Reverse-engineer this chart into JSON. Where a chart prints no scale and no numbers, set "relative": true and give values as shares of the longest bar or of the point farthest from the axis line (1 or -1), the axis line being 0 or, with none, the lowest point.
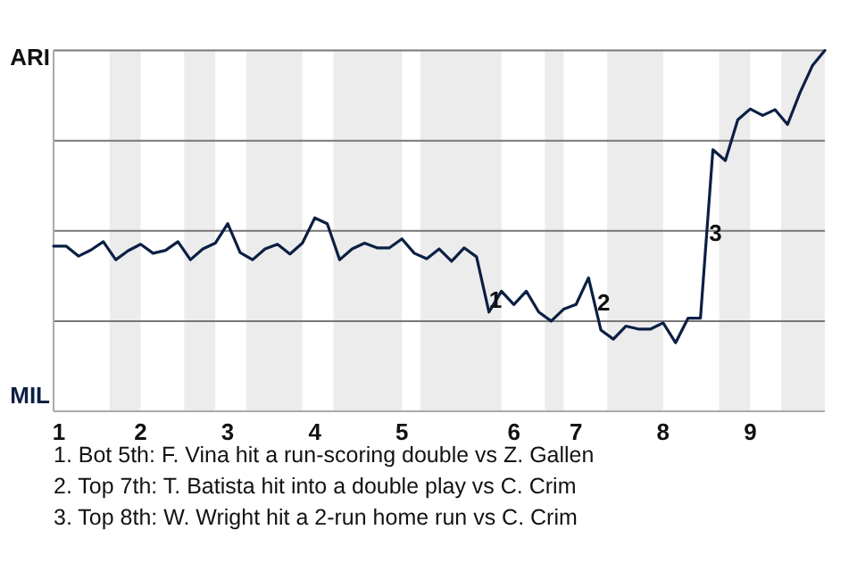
{
  "chart_data": {
    "type": "line",
    "relative": true,
    "marker": "none",
    "line_style": "solid",
    "categories": [
      "1",
      null,
      null,
      null,
      null,
      null,
      null,
      "2",
      null,
      null,
      null,
      null,
      null,
      null,
      "3",
      null,
      null,
      null,
      null,
      null,
      null,
      "4",
      null,
      null,
      null,
      null,
      null,
      null,
      "5",
      null,
      null,
      null,
      null,
      null,
      null,
      null,
      null,
      "6",
      null,
      null,
      null,
      null,
      "7",
      null,
      null,
      null,
      null,
      null,
      null,
      "8",
      null,
      null,
      null,
      null,
      null,
      null,
      "9",
      null,
      null,
      null,
      null,
      null,
      null
    ],
    "series": [
      {
        "color": "#0b1f44",
        "values": [
          0.458,
          0.458,
          0.43,
          0.447,
          0.47,
          0.42,
          0.445,
          0.463,
          0.438,
          0.446,
          0.47,
          0.42,
          0.45,
          0.466,
          0.52,
          0.44,
          0.42,
          0.45,
          0.463,
          0.436,
          0.466,
          0.536,
          0.52,
          0.42,
          0.45,
          0.466,
          0.453,
          0.453,
          0.478,
          0.438,
          0.423,
          0.45,
          0.416,
          0.453,
          0.428,
          0.275,
          0.333,
          0.296,
          0.333,
          0.275,
          0.25,
          0.283,
          0.296,
          0.37,
          0.225,
          0.2,
          0.236,
          0.228,
          0.228,
          0.245,
          0.19,
          0.258,
          0.258,
          0.725,
          0.695,
          0.808,
          0.838,
          0.82,
          0.836,
          0.795,
          0.883,
          0.958,
          1
        ]
      }
    ],
    "ref_lines": [
      {
        "axis": "y",
        "value": 0.25,
        "color": "#777777"
      },
      {
        "axis": "y",
        "value": 0.5,
        "color": "#777777"
      },
      {
        "axis": "y",
        "value": 0.75,
        "color": "#777777"
      },
      {
        "axis": "y",
        "value": 1,
        "color": "#777777"
      }
    ],
    "annotations": [
      "ARI",
      "MIL",
      {
        "text": "1",
        "y": 0.304
      },
      {
        "text": "2",
        "y": 0.297
      },
      {
        "text": "3",
        "y": 0.49
      },
      "1. Bot 5th: F. Vina hit a run-scoring double vs Z. Gallen",
      "2. Top 7th: T. Batista hit into a double play vs C. Crim",
      "3. Top 8th: W. Wright hit a 2-run home run vs C. Crim"
    ]
  }
}
